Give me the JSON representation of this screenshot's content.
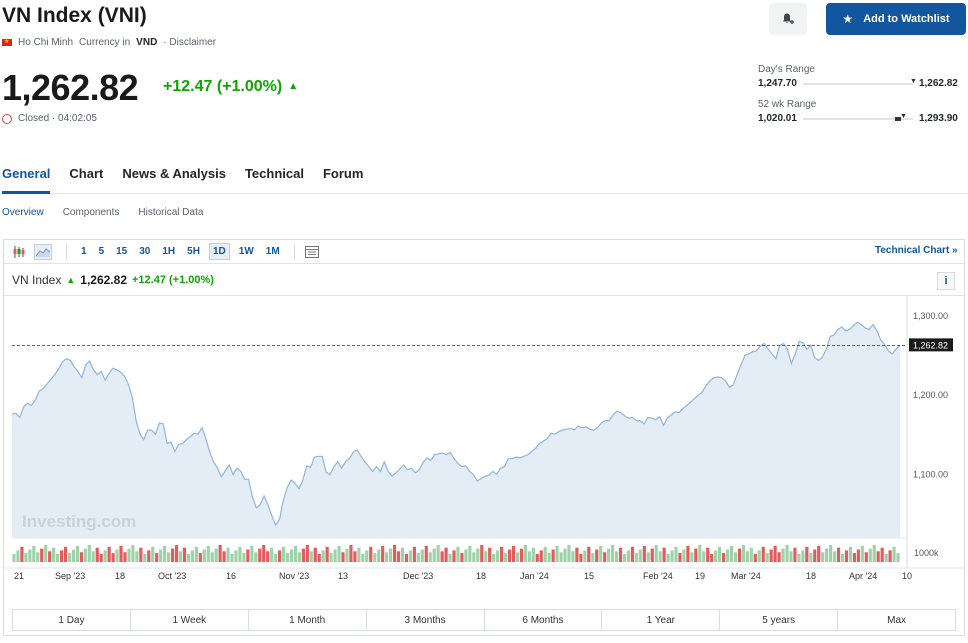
{
  "header": {
    "title": "VN Index (VNI)",
    "exchange": "Ho Chi Minh",
    "currency_prefix": "Currency in",
    "currency": "VND",
    "disclaimer": "· Disclaimer",
    "price": "1,262.82",
    "change": "+12.47 (+1.00%)",
    "status": "Closed · 04:02:05",
    "watchlist_label": "Add to Watchlist"
  },
  "ranges": {
    "day_label": "Day's Range",
    "day_low": "1,247.70",
    "day_high": "1,262.82",
    "wk52_label": "52 wk Range",
    "wk52_low": "1,020.01",
    "wk52_high": "1,293.90"
  },
  "tabs": [
    "General",
    "Chart",
    "News & Analysis",
    "Technical",
    "Forum"
  ],
  "subtabs": [
    "Overview",
    "Components",
    "Historical Data"
  ],
  "toolbar": {
    "intervals": [
      "1",
      "5",
      "15",
      "30",
      "1H",
      "5H",
      "1D",
      "1W",
      "1M"
    ],
    "selected_interval": "1D",
    "technical_chart": "Technical Chart »"
  },
  "legend": {
    "name": "VN Index",
    "value": "1,262.82",
    "change": "+12.47 (+1.00%)"
  },
  "periods": [
    "1 Day",
    "1 Week",
    "1 Month",
    "3 Months",
    "6 Months",
    "1 Year",
    "5 years",
    "Max"
  ],
  "colors": {
    "accent": "#1256a0",
    "up": "#0ea600",
    "down": "#e55b5b",
    "area_fill": "#e4edf6",
    "line": "#8fb6dc",
    "vol_up": "#9ed3a8"
  },
  "chart_data": {
    "type": "area",
    "y_ticks": [
      "1,300.00",
      "1,200.00",
      "1,100.00"
    ],
    "current_label": "1,262.82",
    "volume_label": "1000k",
    "x_ticks": [
      "21",
      "Sep '23",
      "18",
      "Oct '23",
      "16",
      "Nov '23",
      "13",
      "Dec '23",
      "18",
      "Jan '24",
      "15",
      "Feb '24",
      "19",
      "Mar '24",
      "18",
      "Apr '24",
      "10"
    ],
    "watermark": "Investing.com",
    "ylim": [
      1020,
      1320
    ],
    "values": [
      1176,
      1177,
      1172,
      1185,
      1190,
      1187,
      1194,
      1205,
      1208,
      1214,
      1220,
      1226,
      1233,
      1242,
      1246,
      1244,
      1236,
      1230,
      1222,
      1238,
      1243,
      1232,
      1226,
      1230,
      1219,
      1227,
      1234,
      1232,
      1229,
      1224,
      1214,
      1198,
      1168,
      1151,
      1144,
      1156,
      1156,
      1151,
      1165,
      1164,
      1139,
      1141,
      1129,
      1138,
      1139,
      1144,
      1148,
      1152,
      1151,
      1159,
      1145,
      1128,
      1116,
      1108,
      1097,
      1105,
      1112,
      1100,
      1108,
      1104,
      1094,
      1094,
      1072,
      1058,
      1062,
      1073,
      1062,
      1048,
      1036,
      1044,
      1068,
      1084,
      1093,
      1089,
      1082,
      1093,
      1111,
      1109,
      1122,
      1123,
      1123,
      1103,
      1100,
      1110,
      1116,
      1108,
      1116,
      1120,
      1128,
      1131,
      1123,
      1116,
      1110,
      1104,
      1110,
      1104,
      1116,
      1104,
      1098,
      1102,
      1107,
      1112,
      1106,
      1108,
      1102,
      1106,
      1115,
      1121,
      1118,
      1125,
      1126,
      1127,
      1125,
      1128,
      1120,
      1114,
      1110,
      1111,
      1104,
      1100,
      1092,
      1095,
      1098,
      1099,
      1104,
      1100,
      1108,
      1110,
      1120,
      1120,
      1122,
      1121,
      1123,
      1125,
      1129,
      1133,
      1139,
      1142,
      1145,
      1152,
      1151,
      1154,
      1156,
      1157,
      1158,
      1156,
      1161,
      1159,
      1160,
      1157,
      1156,
      1159,
      1165,
      1168,
      1168,
      1175,
      1180,
      1178,
      1174,
      1171,
      1172,
      1168,
      1168,
      1164,
      1172,
      1171,
      1169,
      1173,
      1162,
      1171,
      1175,
      1179,
      1178,
      1183,
      1187,
      1191,
      1196,
      1200,
      1204,
      1212,
      1218,
      1222,
      1223,
      1222,
      1218,
      1210,
      1213,
      1226,
      1238,
      1250,
      1252,
      1255,
      1256,
      1262,
      1265,
      1258,
      1252,
      1246,
      1263,
      1265,
      1258,
      1240,
      1252,
      1268,
      1266,
      1258,
      1263,
      1247,
      1244,
      1248,
      1258,
      1274,
      1276,
      1283,
      1286,
      1281,
      1283,
      1288,
      1292,
      1289,
      1285,
      1283,
      1289,
      1282,
      1270,
      1264,
      1256,
      1252,
      1258,
      1263
    ],
    "volume_updown": "ggrggggrgrggrrgggrgggrrgrrgrrgggrgrgrgggrrgrgggrggggrrgggggrggrrrggrgggggrrgrrgrgggrgrrgggrggrggrrgrgrggrgggrrgrgrggggrgrggrgrrgrgggrrggrgggggrrgrgrgrgggrggrggrgrggrgggrgrgrggrrggrgggrgggrgrgrrrgggrggrgrrggggrgrgrrgrggrrgrgg"
  }
}
